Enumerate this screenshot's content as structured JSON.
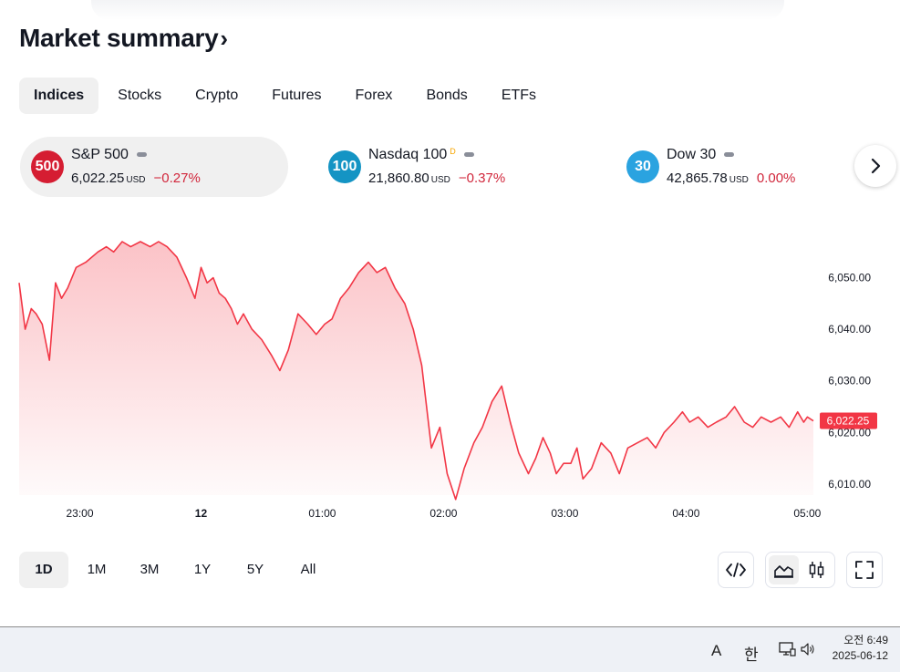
{
  "header": {
    "title": "Market summary",
    "title_chevron": "›"
  },
  "tabs": [
    {
      "label": "Indices",
      "active": true
    },
    {
      "label": "Stocks"
    },
    {
      "label": "Crypto"
    },
    {
      "label": "Futures"
    },
    {
      "label": "Forex"
    },
    {
      "label": "Bonds"
    },
    {
      "label": "ETFs"
    }
  ],
  "tickers": [
    {
      "icon_text": "500",
      "icon_color": "#d51d32",
      "name": "S&P 500",
      "delayed_mark": "",
      "price": "6,022.25",
      "currency": "USD",
      "change": "−0.27%",
      "active": true
    },
    {
      "icon_text": "100",
      "icon_color": "#1494c4",
      "name": "Nasdaq 100",
      "delayed_mark": "D",
      "price": "21,860.80",
      "currency": "USD",
      "change": "−0.37%"
    },
    {
      "icon_text": "30",
      "icon_color": "#2aa3e0",
      "name": "Dow 30",
      "delayed_mark": "",
      "price": "42,865.78",
      "currency": "USD",
      "change": "0.00%"
    }
  ],
  "next_icon": "chevron-right-icon",
  "chart_data": {
    "type": "area",
    "series_color": "#f23645",
    "ylim": [
      6007.5,
      6060
    ],
    "y_ticks": [
      "6,050.00",
      "6,040.00",
      "6,030.00",
      "6,020.00",
      "6,010.00"
    ],
    "y_tick_values": [
      6050,
      6040,
      6030,
      6020,
      6010
    ],
    "x_ticks": [
      "23:00",
      "12",
      "01:00",
      "02:00",
      "03:00",
      "04:00",
      "05:00"
    ],
    "x_tick_times": [
      0,
      1,
      2,
      3,
      4,
      5,
      6
    ],
    "x_range": [
      -0.5,
      6.05
    ],
    "last_price_label": "6,022.25",
    "last_price_value": 6022.25,
    "x": [
      -0.5,
      -0.45,
      -0.4,
      -0.36,
      -0.31,
      -0.25,
      -0.2,
      -0.15,
      -0.1,
      -0.03,
      0.05,
      0.15,
      0.22,
      0.28,
      0.35,
      0.42,
      0.5,
      0.58,
      0.65,
      0.72,
      0.8,
      0.88,
      0.95,
      1.0,
      1.05,
      1.1,
      1.15,
      1.2,
      1.25,
      1.3,
      1.35,
      1.42,
      1.5,
      1.58,
      1.65,
      1.72,
      1.8,
      1.88,
      1.95,
      2.02,
      2.08,
      2.15,
      2.22,
      2.3,
      2.38,
      2.45,
      2.52,
      2.6,
      2.68,
      2.75,
      2.82,
      2.9,
      2.97,
      3.03,
      3.1,
      3.17,
      3.25,
      3.32,
      3.4,
      3.48,
      3.55,
      3.62,
      3.7,
      3.76,
      3.82,
      3.88,
      3.93,
      3.99,
      4.05,
      4.1,
      4.15,
      4.22,
      4.3,
      4.38,
      4.45,
      4.52,
      4.6,
      4.68,
      4.75,
      4.82,
      4.9,
      4.97,
      5.03,
      5.1,
      5.18,
      5.25,
      5.33,
      5.4,
      5.48,
      5.55,
      5.62,
      5.7,
      5.78,
      5.85,
      5.92,
      5.97,
      6.0,
      6.05
    ],
    "values": [
      6049,
      6040,
      6044,
      6043,
      6041,
      6034,
      6049,
      6046,
      6048,
      6052,
      6053,
      6055,
      6056,
      6055,
      6057,
      6056,
      6057,
      6056,
      6057,
      6056,
      6054,
      6050,
      6046,
      6052,
      6049,
      6050,
      6047,
      6046,
      6044,
      6041,
      6043,
      6040,
      6038,
      6035,
      6032,
      6036,
      6043,
      6041,
      6039,
      6041,
      6042,
      6046,
      6048,
      6051,
      6053,
      6051,
      6052,
      6048,
      6045,
      6040,
      6033,
      6017,
      6021,
      6012,
      6007,
      6013,
      6018,
      6021,
      6026,
      6029,
      6022,
      6016,
      6012,
      6015,
      6019,
      6016,
      6012,
      6014,
      6014,
      6017,
      6011,
      6013,
      6018,
      6016,
      6012,
      6017,
      6018,
      6019,
      6017,
      6020,
      6022,
      6024,
      6022,
      6023,
      6021,
      6022,
      6023,
      6025,
      6022,
      6021,
      6023,
      6022,
      6023,
      6021,
      6024,
      6022,
      6023,
      6022.25
    ]
  },
  "ranges": [
    {
      "label": "1D",
      "active": true
    },
    {
      "label": "1M"
    },
    {
      "label": "3M"
    },
    {
      "label": "1Y"
    },
    {
      "label": "5Y"
    },
    {
      "label": "All"
    }
  ],
  "tools": {
    "embed_icon": "code-icon",
    "area_icon": "area-chart-icon",
    "candles_icon": "candlestick-icon",
    "fullscreen_icon": "fullscreen-icon"
  },
  "taskbar": {
    "ime_mode": "A",
    "ime_lang": "한",
    "time": "오전 6:49",
    "date": "2025-06-12"
  }
}
